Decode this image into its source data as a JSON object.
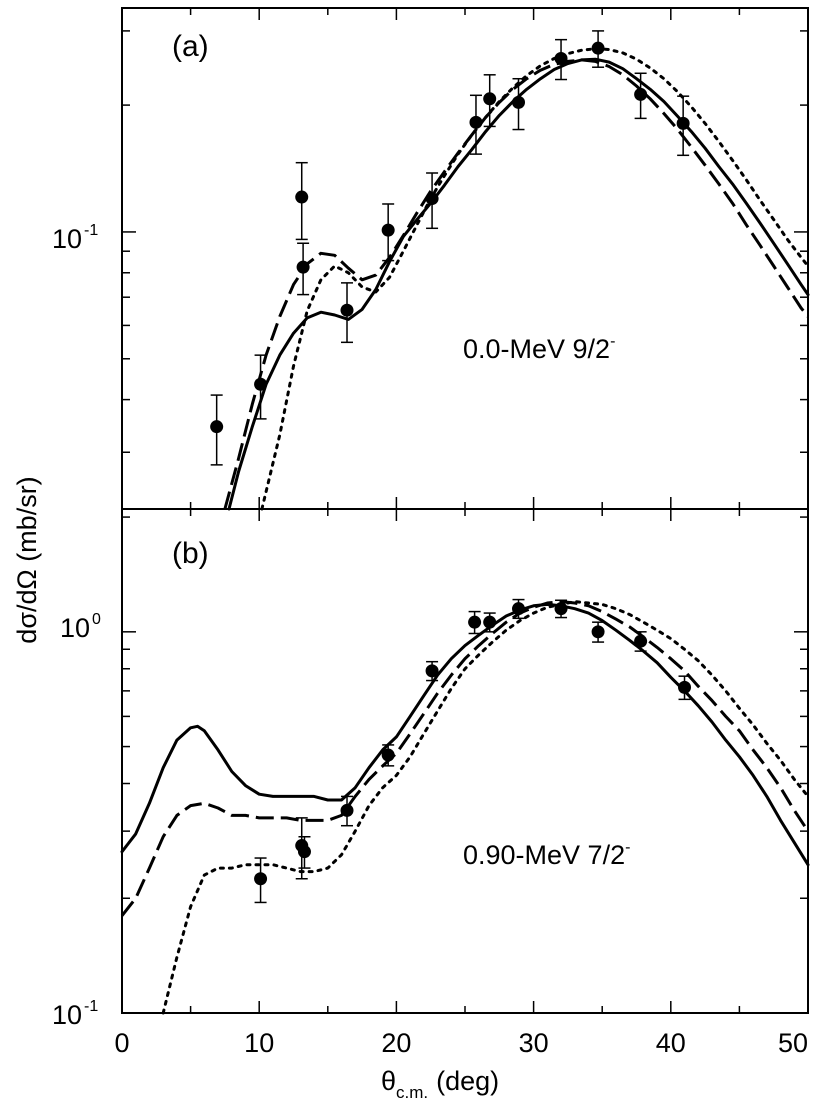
{
  "chart_data": {
    "type": "scatter",
    "ylabel": "dσ/dΩ (mb/sr)",
    "xlabel_main": "θ",
    "xlabel_sub": "c.m.",
    "xlabel_unit": "(deg)",
    "xlim": [
      0,
      50
    ],
    "xticks": [
      "0",
      "10",
      "20",
      "30",
      "40",
      "50"
    ],
    "line_color": "#000000",
    "panels": [
      {
        "panel_label": "(a)",
        "annotation_text": "0.0-MeV 9/2",
        "annotation_sup": "-",
        "yscale": "log",
        "ylim": [
          0.022,
          0.34
        ],
        "yticks": [
          {
            "base": "10",
            "exp": "-1",
            "value": 0.1
          }
        ],
        "data_points": [
          {
            "x": 6.9,
            "y": 0.0345,
            "err": 0.0065
          },
          {
            "x": 10.1,
            "y": 0.0435,
            "err": 0.0075
          },
          {
            "x": 13.1,
            "y": 0.121,
            "err": 0.025
          },
          {
            "x": 13.2,
            "y": 0.0825,
            "err": 0.0115
          },
          {
            "x": 16.4,
            "y": 0.0652,
            "err": 0.0105
          },
          {
            "x": 19.4,
            "y": 0.101,
            "err": 0.0155
          },
          {
            "x": 22.6,
            "y": 0.12,
            "err": 0.018
          },
          {
            "x": 25.8,
            "y": 0.182,
            "err": 0.029
          },
          {
            "x": 26.8,
            "y": 0.207,
            "err": 0.029
          },
          {
            "x": 28.9,
            "y": 0.203,
            "err": 0.028
          },
          {
            "x": 32.0,
            "y": 0.258,
            "err": 0.028
          },
          {
            "x": 34.7,
            "y": 0.273,
            "err": 0.027
          },
          {
            "x": 37.8,
            "y": 0.212,
            "err": 0.026
          },
          {
            "x": 40.9,
            "y": 0.181,
            "err": 0.029
          }
        ],
        "series": [
          {
            "name": "solid",
            "style": "solid",
            "x": [
              7.8,
              8.5,
              9.5,
              10.5,
              11.5,
              12.5,
              13.5,
              14.5,
              15.5,
              16.5,
              17.5,
              18.5,
              19.5,
              20.5,
              21.5,
              22.5,
              23.5,
              24.5,
              25.5,
              26.5,
              27.5,
              28.5,
              29.5,
              30.5,
              31.5,
              32.5,
              33.5,
              34.5,
              35.5,
              36.5,
              37.5,
              38.5,
              39.5,
              40.5,
              41.5,
              42.5,
              43.5,
              44.5,
              45.5,
              46.5,
              47.5,
              48.5,
              49.5,
              50.0
            ],
            "y": [
              0.022,
              0.027,
              0.0345,
              0.0435,
              0.051,
              0.0575,
              0.0625,
              0.0645,
              0.0635,
              0.062,
              0.0655,
              0.073,
              0.085,
              0.0975,
              0.107,
              0.117,
              0.129,
              0.143,
              0.157,
              0.173,
              0.189,
              0.204,
              0.218,
              0.231,
              0.243,
              0.251,
              0.256,
              0.257,
              0.253,
              0.244,
              0.231,
              0.218,
              0.204,
              0.188,
              0.173,
              0.158,
              0.143,
              0.13,
              0.117,
              0.105,
              0.094,
              0.084,
              0.075,
              0.071
            ]
          },
          {
            "name": "dashed",
            "style": "dashed",
            "x": [
              7.5,
              8.5,
              9.5,
              10.5,
              11.5,
              12.5,
              13.5,
              14.5,
              15.5,
              16.5,
              17.5,
              18.5,
              19.5,
              20.5,
              21.5,
              22.5,
              23.5,
              24.5,
              25.5,
              26.5,
              27.5,
              28.5,
              29.5,
              30.5,
              31.5,
              32.5,
              33.5,
              34.5,
              35.5,
              36.5,
              37.5,
              38.5,
              39.5,
              40.5,
              41.5,
              42.5,
              43.5,
              44.5,
              45.5,
              46.5,
              47.5,
              48.5,
              49.5,
              50.0
            ],
            "y": [
              0.022,
              0.029,
              0.039,
              0.051,
              0.063,
              0.075,
              0.084,
              0.089,
              0.088,
              0.082,
              0.077,
              0.079,
              0.087,
              0.098,
              0.111,
              0.125,
              0.139,
              0.154,
              0.17,
              0.187,
              0.203,
              0.218,
              0.231,
              0.242,
              0.25,
              0.254,
              0.256,
              0.254,
              0.247,
              0.236,
              0.222,
              0.207,
              0.191,
              0.175,
              0.159,
              0.144,
              0.13,
              0.117,
              0.104,
              0.093,
              0.083,
              0.074,
              0.066,
              0.063
            ]
          },
          {
            "name": "dotted",
            "style": "dotted",
            "x": [
              10.2,
              11.5,
              12.5,
              13.5,
              14.5,
              15.5,
              16.5,
              17.5,
              18.5,
              19.5,
              20.5,
              21.5,
              22.5,
              23.5,
              24.5,
              25.5,
              26.5,
              27.5,
              28.5,
              29.5,
              30.5,
              31.5,
              32.5,
              33.5,
              34.5,
              35.5,
              36.5,
              37.5,
              38.5,
              39.5,
              40.5,
              41.5,
              42.5,
              43.5,
              44.5,
              45.5,
              46.5,
              47.5,
              48.5,
              49.5,
              50.0
            ],
            "y": [
              0.022,
              0.033,
              0.048,
              0.065,
              0.077,
              0.083,
              0.08,
              0.074,
              0.072,
              0.078,
              0.09,
              0.104,
              0.12,
              0.136,
              0.153,
              0.17,
              0.187,
              0.204,
              0.22,
              0.235,
              0.248,
              0.258,
              0.265,
              0.27,
              0.272,
              0.271,
              0.266,
              0.257,
              0.245,
              0.231,
              0.215,
              0.198,
              0.181,
              0.164,
              0.148,
              0.133,
              0.119,
              0.107,
              0.096,
              0.087,
              0.083
            ]
          }
        ]
      },
      {
        "panel_label": "(b)",
        "annotation_text": "0.90-MeV 7/2",
        "annotation_sup": "-",
        "yscale": "log",
        "ylim": [
          0.1,
          2.1
        ],
        "yticks": [
          {
            "base": "10",
            "exp": "-1",
            "value": 0.1
          },
          {
            "base": "10",
            "exp": "0",
            "value": 1.0
          }
        ],
        "data_points": [
          {
            "x": 10.1,
            "y": 0.225,
            "err": 0.03
          },
          {
            "x": 13.1,
            "y": 0.275,
            "err": 0.05
          },
          {
            "x": 13.3,
            "y": 0.265,
            "err": 0.025
          },
          {
            "x": 16.4,
            "y": 0.34,
            "err": 0.03
          },
          {
            "x": 19.4,
            "y": 0.475,
            "err": 0.03
          },
          {
            "x": 22.6,
            "y": 0.79,
            "err": 0.045
          },
          {
            "x": 25.7,
            "y": 1.06,
            "err": 0.07
          },
          {
            "x": 26.8,
            "y": 1.06,
            "err": 0.06
          },
          {
            "x": 28.9,
            "y": 1.15,
            "err": 0.065
          },
          {
            "x": 32.0,
            "y": 1.15,
            "err": 0.06
          },
          {
            "x": 34.7,
            "y": 1.0,
            "err": 0.06
          },
          {
            "x": 37.8,
            "y": 0.945,
            "err": 0.055
          },
          {
            "x": 41.0,
            "y": 0.715,
            "err": 0.05
          }
        ],
        "series": [
          {
            "name": "solid",
            "style": "solid",
            "x": [
              0,
              1,
              2,
              3,
              4,
              5,
              5.5,
              6,
              7,
              8,
              9,
              10,
              11,
              12,
              13,
              14,
              15,
              16,
              17,
              18,
              19,
              20,
              21,
              22,
              23,
              24,
              25,
              26,
              27,
              28,
              29,
              30,
              31,
              32,
              33,
              34,
              35,
              36,
              37,
              38,
              39,
              40,
              41,
              42,
              43,
              44,
              45,
              46,
              47,
              48,
              49,
              50
            ],
            "y": [
              0.265,
              0.295,
              0.355,
              0.44,
              0.52,
              0.56,
              0.565,
              0.55,
              0.49,
              0.43,
              0.395,
              0.375,
              0.37,
              0.37,
              0.37,
              0.37,
              0.362,
              0.362,
              0.39,
              0.44,
              0.49,
              0.53,
              0.6,
              0.68,
              0.77,
              0.85,
              0.92,
              0.98,
              1.04,
              1.1,
              1.14,
              1.17,
              1.18,
              1.17,
              1.15,
              1.12,
              1.07,
              1.01,
              0.95,
              0.89,
              0.83,
              0.76,
              0.7,
              0.64,
              0.58,
              0.52,
              0.47,
              0.42,
              0.37,
              0.32,
              0.28,
              0.245
            ]
          },
          {
            "name": "dashed",
            "style": "dashed",
            "x": [
              0,
              1,
              2,
              3,
              4,
              5,
              6,
              7,
              8,
              9,
              10,
              11,
              12,
              13,
              14,
              15,
              16,
              17,
              18,
              19,
              20,
              21,
              22,
              23,
              24,
              25,
              26,
              27,
              28,
              29,
              30,
              31,
              32,
              33,
              34,
              35,
              36,
              37,
              38,
              39,
              40,
              41,
              42,
              43,
              44,
              45,
              46,
              47,
              48,
              49,
              50
            ],
            "y": [
              0.18,
              0.2,
              0.24,
              0.29,
              0.33,
              0.35,
              0.355,
              0.345,
              0.33,
              0.33,
              0.325,
              0.325,
              0.325,
              0.32,
              0.32,
              0.32,
              0.33,
              0.37,
              0.41,
              0.445,
              0.48,
              0.54,
              0.61,
              0.69,
              0.77,
              0.85,
              0.92,
              0.99,
              1.06,
              1.12,
              1.16,
              1.19,
              1.2,
              1.19,
              1.17,
              1.13,
              1.08,
              1.03,
              0.97,
              0.91,
              0.85,
              0.79,
              0.72,
              0.66,
              0.6,
              0.55,
              0.49,
              0.44,
              0.39,
              0.34,
              0.3
            ]
          },
          {
            "name": "dotted",
            "style": "dotted",
            "x": [
              3,
              4,
              5,
              6,
              7,
              8,
              9,
              10,
              11,
              12,
              13,
              14,
              15,
              16,
              17,
              18,
              19,
              20,
              21,
              22,
              23,
              24,
              25,
              26,
              27,
              28,
              29,
              30,
              31,
              32,
              33,
              34,
              35,
              36,
              37,
              38,
              39,
              40,
              41,
              42,
              43,
              44,
              45,
              46,
              47,
              48,
              49,
              50
            ],
            "y": [
              0.1,
              0.14,
              0.19,
              0.23,
              0.24,
              0.24,
              0.245,
              0.245,
              0.245,
              0.24,
              0.235,
              0.235,
              0.24,
              0.26,
              0.3,
              0.35,
              0.39,
              0.42,
              0.47,
              0.54,
              0.62,
              0.71,
              0.8,
              0.87,
              0.94,
              1.01,
              1.07,
              1.12,
              1.16,
              1.18,
              1.2,
              1.19,
              1.18,
              1.15,
              1.11,
              1.06,
              1.01,
              0.96,
              0.9,
              0.84,
              0.77,
              0.7,
              0.63,
              0.57,
              0.51,
              0.46,
              0.41,
              0.37
            ]
          }
        ]
      }
    ]
  }
}
